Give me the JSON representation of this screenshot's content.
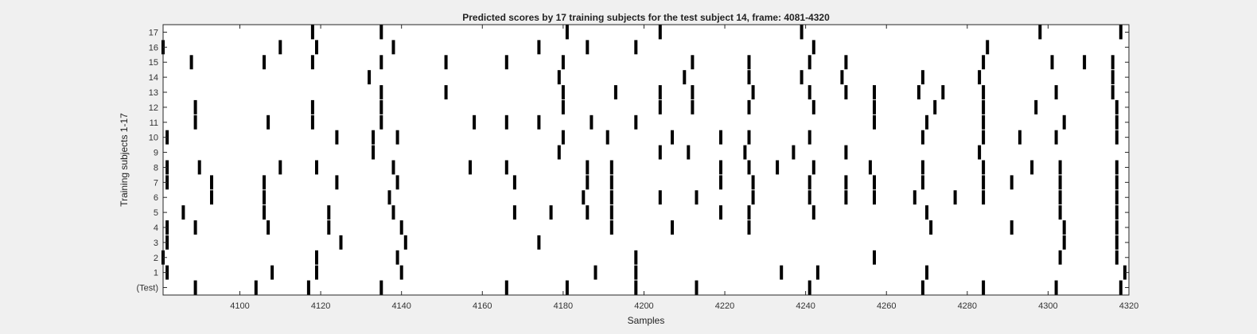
{
  "chart_data": {
    "type": "raster",
    "title": "Predicted scores by 17 training subjects for the test subject 14, frame: 4081-4320",
    "xlabel": "Samples",
    "ylabel": "Training subjects 1-17",
    "xlim": [
      4081,
      4320
    ],
    "xticks": [
      4100,
      4120,
      4140,
      4160,
      4180,
      4200,
      4220,
      4240,
      4260,
      4280,
      4300,
      4320
    ],
    "rows": [
      "(Test)",
      "1",
      "2",
      "3",
      "4",
      "5",
      "6",
      "7",
      "8",
      "9",
      "10",
      "11",
      "12",
      "13",
      "14",
      "15",
      "16",
      "17"
    ],
    "grid": false,
    "mark_color": "#000000",
    "events": [
      {
        "row": "(Test)",
        "x": [
          4089,
          4104,
          4117,
          4135,
          4166,
          4181,
          4198,
          4213,
          4241,
          4269,
          4284,
          4302,
          4318
        ]
      },
      {
        "row": "1",
        "x": [
          4082,
          4108,
          4119,
          4140,
          4188,
          4198,
          4234,
          4243,
          4270,
          4319
        ]
      },
      {
        "row": "2",
        "x": [
          4081,
          4119,
          4139,
          4198,
          4257,
          4303,
          4317
        ]
      },
      {
        "row": "3",
        "x": [
          4082,
          4125,
          4141,
          4174,
          4304,
          4317
        ]
      },
      {
        "row": "4",
        "x": [
          4082,
          4089,
          4107,
          4122,
          4140,
          4192,
          4207,
          4226,
          4271,
          4291,
          4304,
          4317
        ]
      },
      {
        "row": "5",
        "x": [
          4086,
          4106,
          4122,
          4138,
          4168,
          4177,
          4186,
          4192,
          4219,
          4226,
          4242,
          4270,
          4303,
          4317
        ]
      },
      {
        "row": "6",
        "x": [
          4093,
          4106,
          4137,
          4185,
          4192,
          4204,
          4213,
          4227,
          4241,
          4250,
          4257,
          4267,
          4277,
          4284,
          4303,
          4317
        ]
      },
      {
        "row": "7",
        "x": [
          4082,
          4093,
          4106,
          4124,
          4139,
          4168,
          4186,
          4192,
          4219,
          4227,
          4241,
          4250,
          4257,
          4269,
          4284,
          4291,
          4303,
          4317
        ]
      },
      {
        "row": "8",
        "x": [
          4082,
          4090,
          4110,
          4119,
          4138,
          4157,
          4166,
          4186,
          4192,
          4219,
          4226,
          4233,
          4242,
          4256,
          4269,
          4284,
          4296,
          4303,
          4317
        ]
      },
      {
        "row": "9",
        "x": [
          4133,
          4179,
          4204,
          4211,
          4225,
          4237,
          4250,
          4283
        ]
      },
      {
        "row": "10",
        "x": [
          4082,
          4124,
          4133,
          4139,
          4180,
          4191,
          4207,
          4219,
          4226,
          4241,
          4269,
          4284,
          4293,
          4302,
          4317
        ]
      },
      {
        "row": "11",
        "x": [
          4089,
          4107,
          4118,
          4135,
          4158,
          4166,
          4174,
          4187,
          4198,
          4257,
          4270,
          4284,
          4304,
          4317
        ]
      },
      {
        "row": "12",
        "x": [
          4089,
          4118,
          4135,
          4180,
          4204,
          4212,
          4226,
          4242,
          4257,
          4272,
          4284,
          4297,
          4317
        ]
      },
      {
        "row": "13",
        "x": [
          4135,
          4151,
          4180,
          4193,
          4204,
          4212,
          4227,
          4241,
          4250,
          4257,
          4268,
          4274,
          4284,
          4302,
          4316
        ]
      },
      {
        "row": "14",
        "x": [
          4132,
          4179,
          4210,
          4226,
          4239,
          4249,
          4269,
          4283,
          4316
        ]
      },
      {
        "row": "15",
        "x": [
          4088,
          4106,
          4118,
          4135,
          4151,
          4166,
          4180,
          4212,
          4226,
          4241,
          4250,
          4284,
          4301,
          4309,
          4316
        ]
      },
      {
        "row": "16",
        "x": [
          4081,
          4110,
          4119,
          4138,
          4174,
          4186,
          4198,
          4242,
          4285
        ]
      },
      {
        "row": "17",
        "x": [
          4118,
          4135,
          4181,
          4204,
          4239,
          4298,
          4318
        ]
      }
    ]
  }
}
